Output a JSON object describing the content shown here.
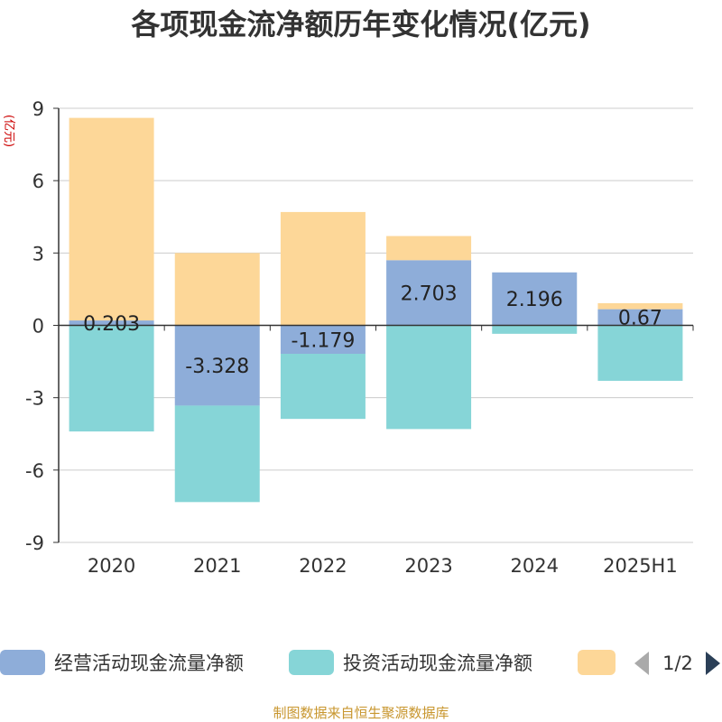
{
  "chart_data": {
    "type": "bar",
    "stacked": true,
    "title": "各项现金流净额历年变化情况(亿元)",
    "ylabel": "(亿元)",
    "xlabel": "",
    "ylim": [
      -9,
      9
    ],
    "yticks": [
      9,
      6,
      3,
      0,
      -3,
      -6,
      -9
    ],
    "grid": true,
    "categories": [
      "2020",
      "2021",
      "2022",
      "2023",
      "2024",
      "2025H1"
    ],
    "series": [
      {
        "name": "经营活动现金流量净额",
        "color": "#8eadd9",
        "values": [
          0.203,
          -3.328,
          -1.179,
          2.703,
          2.196,
          0.67
        ],
        "labels": [
          "0.203",
          "-3.328",
          "-1.179",
          "2.703",
          "2.196",
          "0.67"
        ]
      },
      {
        "name": "投资活动现金流量净额",
        "color": "#86d5d7",
        "values": [
          -4.4,
          -4.0,
          -2.7,
          -4.3,
          -0.35,
          -2.3
        ]
      },
      {
        "name": "",
        "color": "#fdd798",
        "values": [
          8.4,
          3.0,
          4.7,
          1.0,
          0.0,
          0.25
        ]
      }
    ],
    "legend": {
      "placement": "bottom",
      "page": "1/2"
    }
  },
  "source_note": "制图数据来自恒生聚源数据库",
  "colors": {
    "title": "#333333",
    "axis_label": "#cc0000",
    "tick_text": "#333333",
    "grid": "#cccccc",
    "axis": "#333333",
    "source": "#c8962e",
    "pager_active": "#2b3f57",
    "pager_inactive": "#aaaaaa"
  }
}
